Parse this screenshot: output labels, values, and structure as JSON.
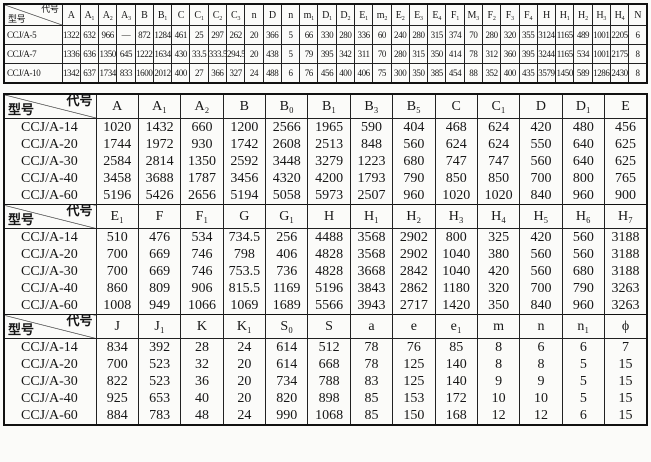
{
  "corner": {
    "code_label": "代号",
    "type_label": "型号"
  },
  "top_table": {
    "headers": [
      "A",
      "A₁",
      "A₂",
      "A₃",
      "B",
      "B₁",
      "C",
      "C₁",
      "C₂",
      "C₃",
      "n",
      "D",
      "n",
      "m₁",
      "D₁",
      "D₂",
      "E₁",
      "m₂",
      "E₂",
      "E₃",
      "E₄",
      "F₁",
      "M₃",
      "F₂",
      "F₃",
      "F₄",
      "H",
      "H₁",
      "H₂",
      "H₃",
      "H₄",
      "N"
    ],
    "rows": [
      {
        "model": "CCJ/A-5",
        "values": [
          "1322",
          "632",
          "966",
          "—",
          "872",
          "1284",
          "461",
          "25",
          "297",
          "262",
          "20",
          "366",
          "5",
          "66",
          "330",
          "280",
          "336",
          "60",
          "240",
          "280",
          "315",
          "374",
          "70",
          "280",
          "320",
          "355",
          "3124",
          "1165",
          "489",
          "1001",
          "2205",
          "6"
        ]
      },
      {
        "model": "CCJ/A-7",
        "values": [
          "1336",
          "636",
          "1350",
          "645",
          "1222",
          "1634",
          "430",
          "33.5",
          "333.5",
          "294.5",
          "20",
          "438",
          "5",
          "79",
          "395",
          "342",
          "311",
          "70",
          "280",
          "315",
          "350",
          "414",
          "78",
          "312",
          "360",
          "395",
          "3244",
          "1165",
          "534",
          "1001",
          "2175",
          "8"
        ]
      },
      {
        "model": "CCJ/A-10",
        "values": [
          "1342",
          "637",
          "1734",
          "833",
          "1600",
          "2012",
          "400",
          "27",
          "366",
          "327",
          "24",
          "488",
          "6",
          "76",
          "456",
          "400",
          "406",
          "75",
          "300",
          "350",
          "385",
          "454",
          "88",
          "352",
          "400",
          "435",
          "3579",
          "1450",
          "589",
          "1286",
          "2430",
          "8"
        ]
      }
    ]
  },
  "main_table": {
    "sections": [
      {
        "headers": [
          "A",
          "A₁",
          "A₂",
          "B",
          "B₀",
          "B₁",
          "B₃",
          "B₅",
          "C",
          "C₁",
          "D",
          "D₁",
          "E"
        ],
        "rows": [
          {
            "model": "CCJ/A-14",
            "values": [
              "1020",
              "1432",
              "660",
              "1200",
              "2566",
              "1965",
              "590",
              "404",
              "468",
              "624",
              "420",
              "480",
              "456"
            ]
          },
          {
            "model": "CCJ/A-20",
            "values": [
              "1744",
              "1972",
              "930",
              "1742",
              "2608",
              "2513",
              "848",
              "560",
              "624",
              "624",
              "550",
              "640",
              "625"
            ]
          },
          {
            "model": "CCJ/A-30",
            "values": [
              "2584",
              "2814",
              "1350",
              "2592",
              "3448",
              "3279",
              "1223",
              "680",
              "747",
              "747",
              "560",
              "640",
              "625"
            ]
          },
          {
            "model": "CCJ/A-40",
            "values": [
              "3458",
              "3688",
              "1787",
              "3456",
              "4320",
              "4200",
              "1793",
              "790",
              "850",
              "850",
              "700",
              "800",
              "765"
            ]
          },
          {
            "model": "CCJ/A-60",
            "values": [
              "5196",
              "5426",
              "2656",
              "5194",
              "5058",
              "5973",
              "2507",
              "960",
              "1020",
              "1020",
              "840",
              "960",
              "900"
            ]
          }
        ]
      },
      {
        "headers": [
          "E₁",
          "F",
          "F₁",
          "G",
          "G₁",
          "H",
          "H₁",
          "H₂",
          "H₃",
          "H₄",
          "H₅",
          "H₆",
          "H₇"
        ],
        "rows": [
          {
            "model": "CCJ/A-14",
            "values": [
              "510",
              "476",
              "534",
              "734.5",
              "256",
              "4488",
              "3568",
              "2902",
              "800",
              "325",
              "420",
              "560",
              "3188"
            ]
          },
          {
            "model": "CCJ/A-20",
            "values": [
              "700",
              "669",
              "746",
              "798",
              "406",
              "4828",
              "3568",
              "2902",
              "1040",
              "380",
              "560",
              "560",
              "3188"
            ]
          },
          {
            "model": "CCJ/A-30",
            "values": [
              "700",
              "669",
              "746",
              "753.5",
              "736",
              "4828",
              "3668",
              "2842",
              "1040",
              "420",
              "560",
              "680",
              "3188"
            ]
          },
          {
            "model": "CCJ/A-40",
            "values": [
              "860",
              "809",
              "906",
              "815.5",
              "1169",
              "5196",
              "3843",
              "2862",
              "1180",
              "320",
              "700",
              "790",
              "3263"
            ]
          },
          {
            "model": "CCJ/A-60",
            "values": [
              "1008",
              "949",
              "1066",
              "1069",
              "1689",
              "5566",
              "3943",
              "2717",
              "1420",
              "350",
              "840",
              "960",
              "3263"
            ]
          }
        ]
      },
      {
        "headers": [
          "J",
          "J₁",
          "K",
          "K₁",
          "S₀",
          "S",
          "a",
          "e",
          "e₁",
          "m",
          "n",
          "n₁",
          "ϕ"
        ],
        "rows": [
          {
            "model": "CCJ/A-14",
            "values": [
              "834",
              "392",
              "28",
              "24",
              "614",
              "512",
              "78",
              "76",
              "85",
              "8",
              "6",
              "6",
              "7"
            ]
          },
          {
            "model": "CCJ/A-20",
            "values": [
              "700",
              "523",
              "32",
              "20",
              "614",
              "668",
              "78",
              "125",
              "140",
              "8",
              "8",
              "5",
              "15"
            ]
          },
          {
            "model": "CCJ/A-30",
            "values": [
              "822",
              "523",
              "36",
              "20",
              "734",
              "788",
              "83",
              "125",
              "140",
              "9",
              "9",
              "5",
              "15"
            ]
          },
          {
            "model": "CCJ/A-40",
            "values": [
              "925",
              "653",
              "40",
              "20",
              "820",
              "898",
              "85",
              "153",
              "172",
              "10",
              "10",
              "5",
              "15"
            ]
          },
          {
            "model": "CCJ/A-60",
            "values": [
              "884",
              "783",
              "48",
              "24",
              "990",
              "1068",
              "85",
              "150",
              "168",
              "12",
              "12",
              "6",
              "15"
            ]
          }
        ]
      }
    ]
  }
}
